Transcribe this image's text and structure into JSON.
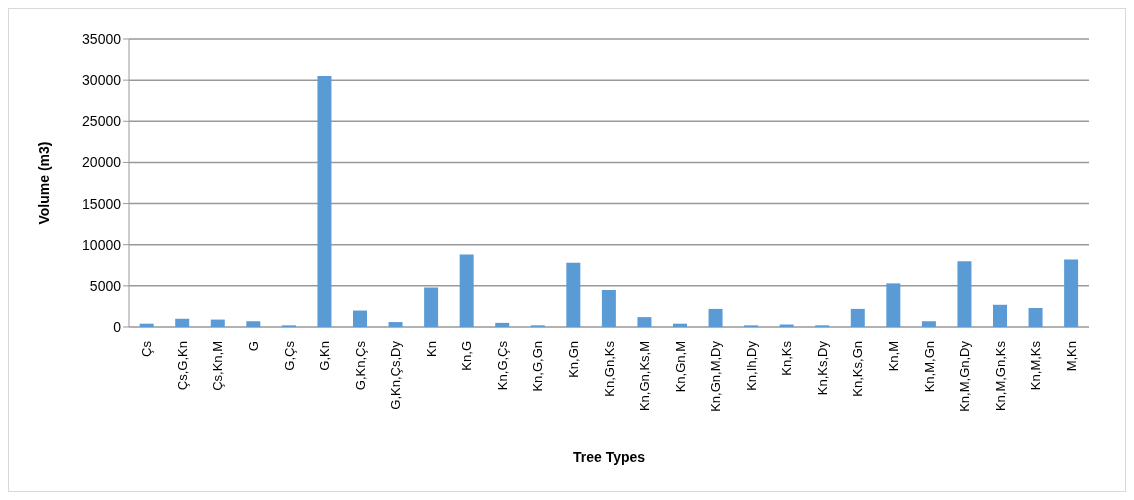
{
  "chart_data": {
    "type": "bar",
    "xlabel": "Tree Types",
    "ylabel": "Volume (m3)",
    "categories": [
      "Çs",
      "Çs,G,Kn",
      "Çs,Kn,M",
      "G",
      "G,Çs",
      "G,Kn",
      "G,Kn,Çs",
      "G,Kn,Çs,Dy",
      "Kn",
      "Kn,G",
      "Kn,G,Çs",
      "Kn,G,Gn",
      "Kn,Gn",
      "Kn,Gn,Ks",
      "Kn,Gn,Ks,M",
      "Kn,Gn,M",
      "Kn,Gn,M,Dy",
      "Kn,Ih,Dy",
      "Kn,Ks",
      "Kn,Ks,Dy",
      "Kn,Ks,Gn",
      "Kn,M",
      "Kn,M,Gn",
      "Kn,M,Gn,Dy",
      "Kn,M,Gn,Ks",
      "Kn,M,Ks",
      "M,Kn"
    ],
    "values": [
      400,
      1000,
      900,
      700,
      200,
      30500,
      2000,
      600,
      4800,
      8800,
      500,
      200,
      7800,
      4500,
      1200,
      400,
      2200,
      200,
      300,
      200,
      2200,
      5300,
      700,
      8000,
      2700,
      2300,
      8200
    ],
    "color": "#5b9bd5",
    "ylim": [
      0,
      35000
    ],
    "yticks": [
      0,
      5000,
      10000,
      15000,
      20000,
      25000,
      30000,
      35000
    ],
    "grid": "y"
  }
}
